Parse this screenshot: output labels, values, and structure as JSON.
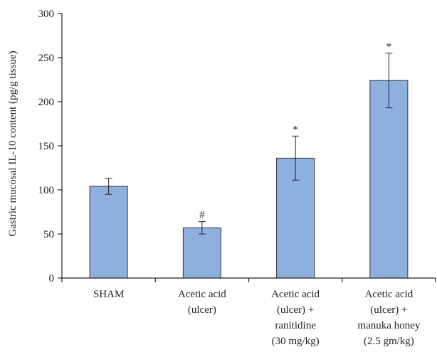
{
  "chart_data": {
    "type": "bar",
    "title": "",
    "xlabel": "",
    "ylabel": "Gastric mucosal IL-10 content (pg/g tissue)",
    "ylim": [
      0,
      300
    ],
    "yticks": [
      0,
      50,
      100,
      150,
      200,
      250,
      300
    ],
    "grid": false,
    "legend": "none",
    "bar_color": "#8eb0de",
    "categories": [
      [
        "SHAM"
      ],
      [
        "Acetic acid",
        "(ulcer)"
      ],
      [
        "Acetic acid",
        "(ulcer) +",
        "ranitidine",
        "(30 mg/kg)"
      ],
      [
        "Acetic acid",
        "(ulcer) +",
        "manuka honey",
        "(2.5 gm/kg)"
      ]
    ],
    "values": [
      104,
      57,
      136,
      224
    ],
    "error": [
      9,
      7,
      25,
      31
    ],
    "annotations": [
      "",
      "#",
      "*",
      "*"
    ]
  }
}
